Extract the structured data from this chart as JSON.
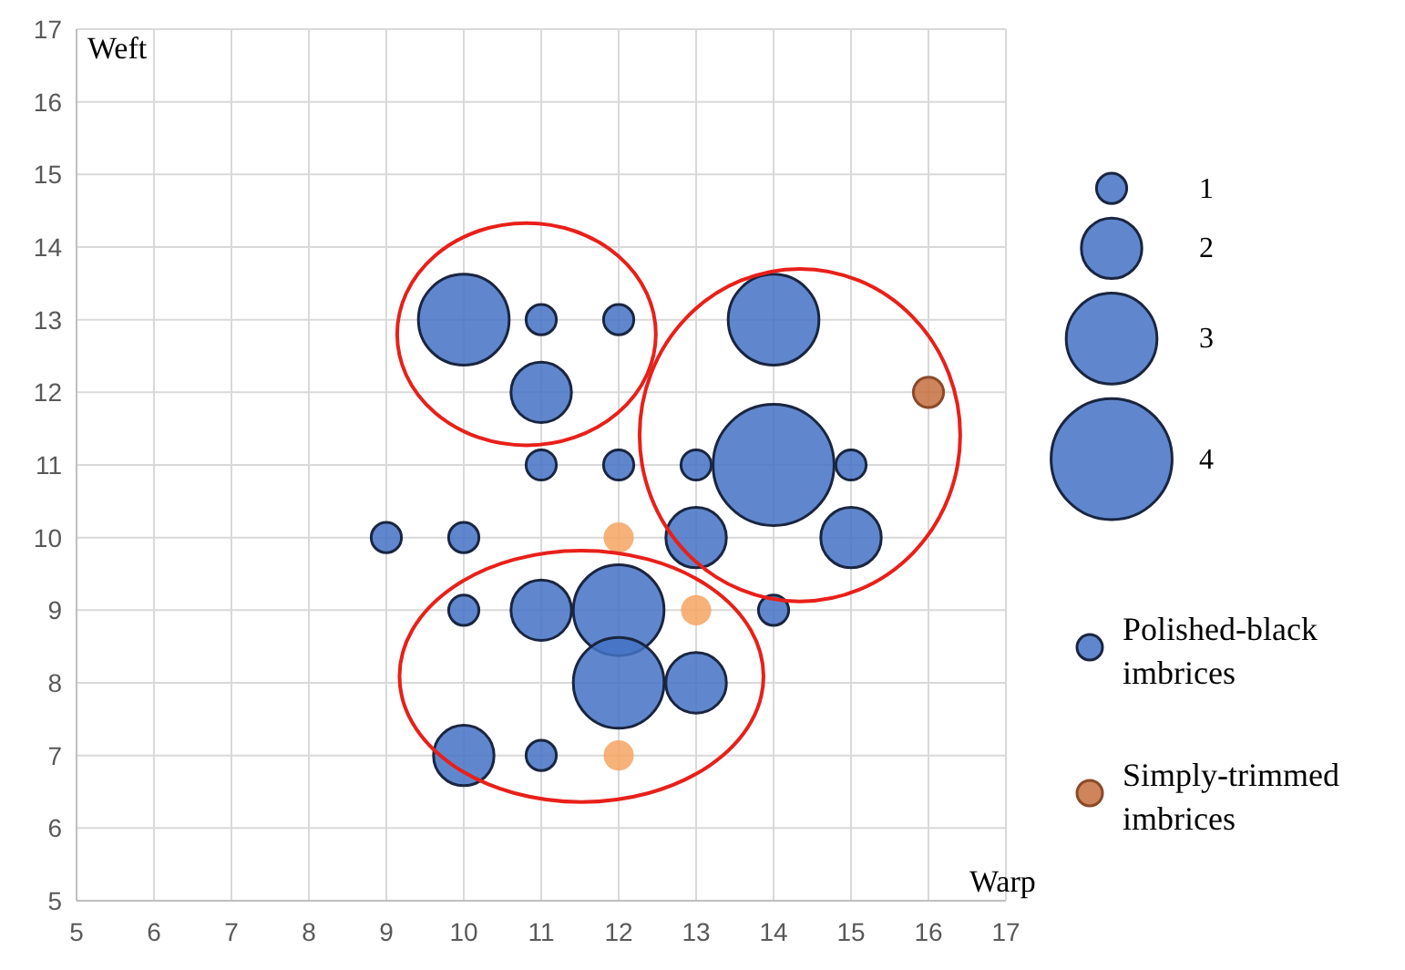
{
  "chart_data": {
    "type": "bubble",
    "xlabel": "Warp",
    "ylabel": "Weft",
    "xlim": [
      5,
      17
    ],
    "ylim": [
      5,
      17
    ],
    "xticks": [
      5,
      6,
      7,
      8,
      9,
      10,
      11,
      12,
      13,
      14,
      15,
      16,
      17
    ],
    "yticks": [
      5,
      6,
      7,
      8,
      9,
      10,
      11,
      12,
      13,
      14,
      15,
      16,
      17
    ],
    "grid": true,
    "legend": "right",
    "marker": "circle",
    "size_legend": [
      {
        "value": 1,
        "label": "1"
      },
      {
        "value": 4,
        "label": "2"
      },
      {
        "value": 9,
        "label": "3"
      },
      {
        "value": 16,
        "label": "4"
      }
    ],
    "series": [
      {
        "name": "Polished-black imbrices",
        "color": "#4472c4",
        "x": [
          10,
          11,
          12,
          11,
          14,
          14,
          11,
          12,
          13,
          15,
          9,
          10,
          13,
          15,
          10,
          11,
          12,
          14,
          12,
          13,
          10,
          11
        ],
        "values": [
          13,
          13,
          13,
          12,
          13,
          11,
          11,
          11,
          11,
          11,
          10,
          10,
          10,
          10,
          9,
          9,
          9,
          9,
          8,
          8,
          7,
          7
        ],
        "sizes": [
          9,
          1,
          1,
          4,
          9,
          16,
          1,
          1,
          1,
          1,
          1,
          1,
          4,
          4,
          1,
          4,
          9,
          1,
          9,
          4,
          4,
          1
        ]
      },
      {
        "name": "Simply-trimmed imbrices",
        "color": "#c5703f",
        "colors": [
          "#c5703f",
          "#f4a460",
          "#f4a460",
          "#f4a460"
        ],
        "x": [
          16,
          12,
          13,
          12
        ],
        "values": [
          12,
          10,
          9,
          7
        ],
        "sizes": [
          1,
          1,
          1,
          1
        ]
      }
    ]
  }
}
